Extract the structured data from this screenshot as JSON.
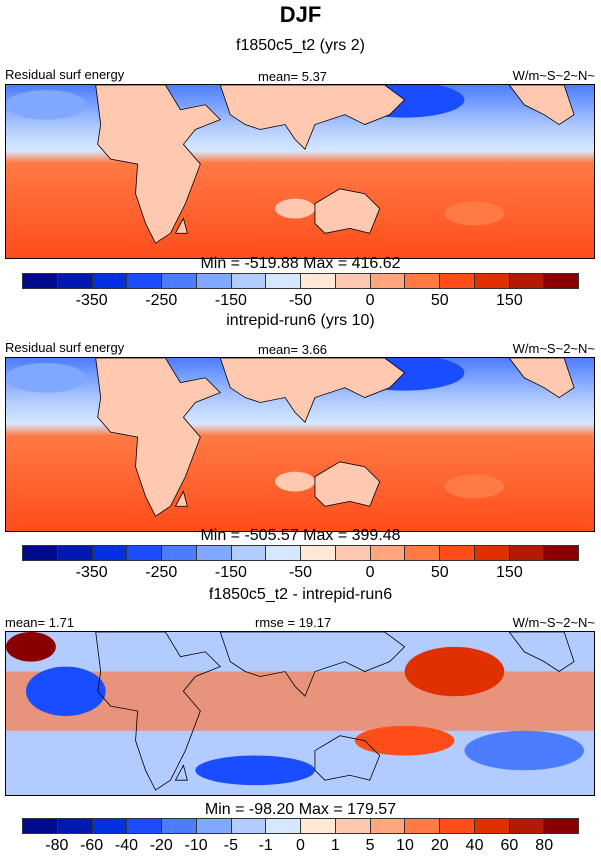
{
  "title": "DJF",
  "panels": [
    {
      "subtitle": "f1850c5_t2 (yrs 2)",
      "left_label": "Residual surf energy",
      "center_label": "mean=  5.37",
      "right_label": "W/m~S~2~N~",
      "minmax": "Min = -519.88 Max = 416.62",
      "colorbar_labels": [
        "-350",
        "-250",
        "-150",
        "-50",
        "0",
        "50",
        "150"
      ]
    },
    {
      "subtitle": "intrepid-run6 (yrs 10)",
      "left_label": "Residual surf energy",
      "center_label": "mean=  3.66",
      "right_label": "W/m~S~2~N~",
      "minmax": "Min = -505.57 Max = 399.48",
      "colorbar_labels": [
        "-350",
        "-250",
        "-150",
        "-50",
        "0",
        "50",
        "150"
      ]
    },
    {
      "subtitle": "f1850c5_t2 - intrepid-run6",
      "left_label": "mean=  1.71",
      "center_label": "rmse =  19.17",
      "right_label": "W/m~S~2~N~",
      "minmax": "Min = -98.20 Max = 179.57",
      "colorbar_labels": [
        "-80",
        "-60",
        "-40",
        "-20",
        "-10",
        "-5",
        "-1",
        "0",
        "1",
        "5",
        "10",
        "20",
        "40",
        "60",
        "80"
      ]
    }
  ],
  "colors": [
    "#000a8f",
    "#0019b0",
    "#0030e0",
    "#1a4dff",
    "#4d7dff",
    "#80a8ff",
    "#b3ccff",
    "#d6e8ff",
    "#ffe8d6",
    "#ffc8b0",
    "#ffa67d",
    "#ff7a45",
    "#ff4d1a",
    "#e03000",
    "#b31a00",
    "#8a0000"
  ]
}
